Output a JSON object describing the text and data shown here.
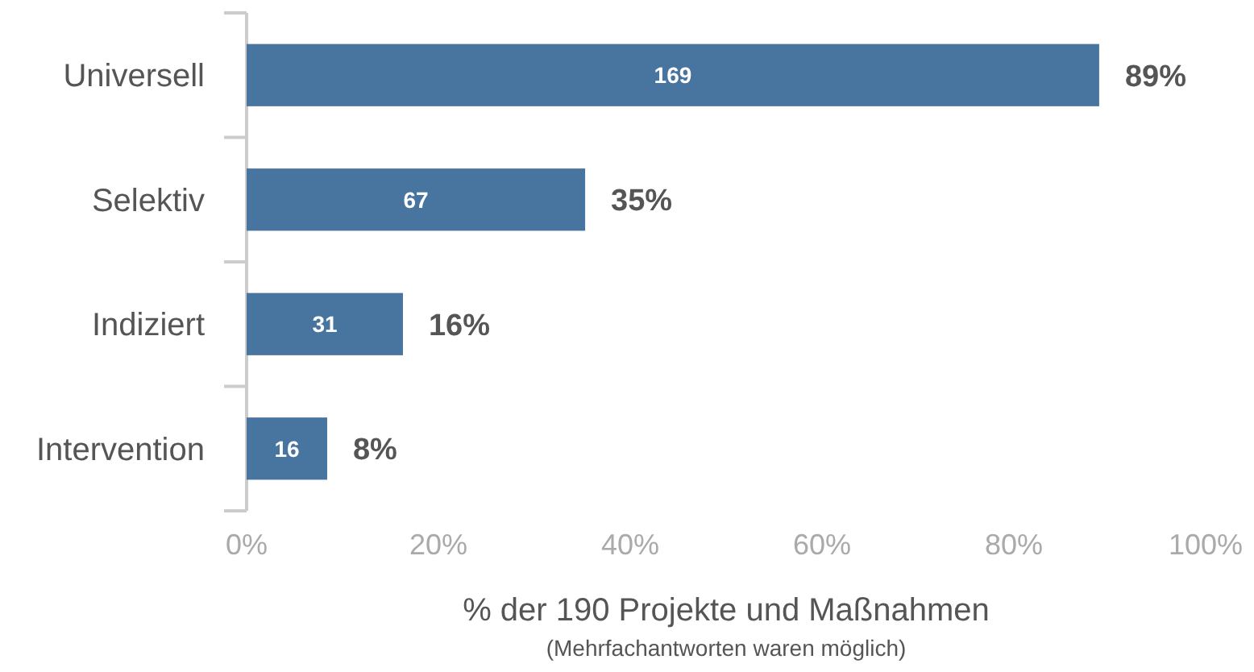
{
  "chart_data": {
    "type": "bar",
    "orientation": "horizontal",
    "categories": [
      "Universell",
      "Selektiv",
      "Indiziert",
      "Intervention"
    ],
    "values": [
      88.9,
      35.3,
      16.3,
      8.4
    ],
    "color": "#4874a0",
    "value_labels": [
      "89%",
      "35%",
      "16%",
      "8%"
    ],
    "xlim": [
      0,
      100
    ],
    "xticks": [
      {
        "value": 0,
        "label": "0%"
      },
      {
        "value": 20,
        "label": "20%"
      },
      {
        "value": 40,
        "label": "40%"
      },
      {
        "value": 60,
        "label": "60%"
      },
      {
        "value": 80,
        "label": "80%"
      },
      {
        "value": 100,
        "label": "100%"
      }
    ],
    "xlabel": "% der 190 Projekte und Maßnahmen",
    "annotations": [
      "169",
      "67",
      "31",
      "16",
      "(Mehrfachantworten waren möglich)"
    ],
    "grid": false
  }
}
